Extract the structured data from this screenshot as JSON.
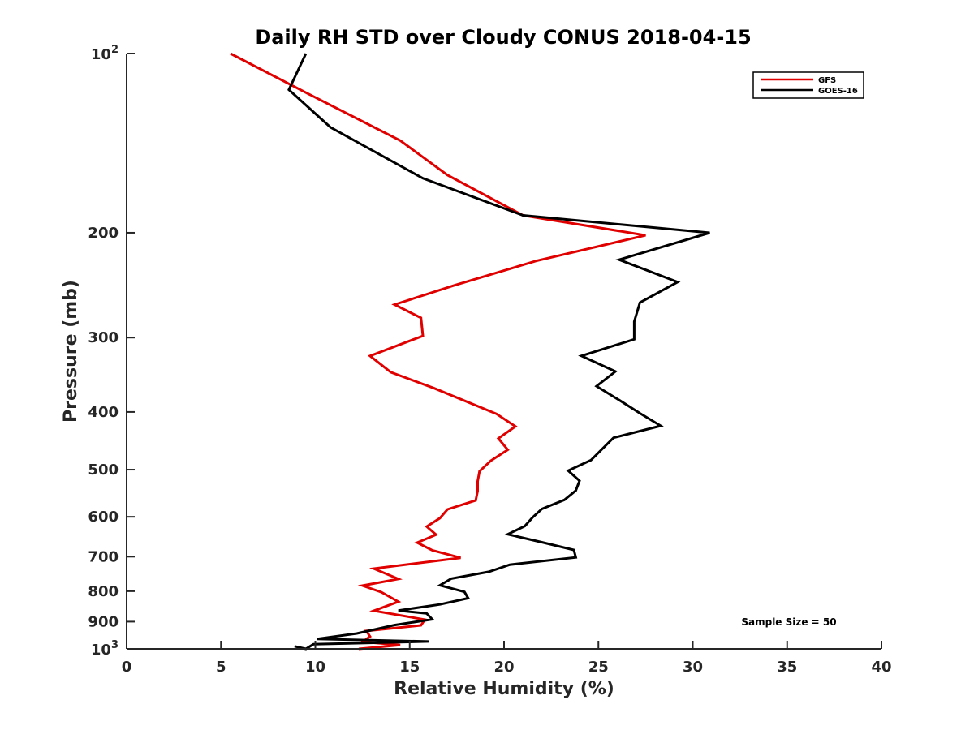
{
  "chart_data": {
    "type": "line",
    "title": "Daily RH STD over Cloudy CONUS 2018-04-15",
    "xlabel": "Relative Humidity (%)",
    "ylabel": "Pressure (mb)",
    "xlim": [
      0,
      40
    ],
    "ylim": [
      100,
      1000
    ],
    "y_scale": "log",
    "y_reversed": true,
    "grid": false,
    "legend_position": "top-right",
    "x_ticks": [
      0,
      5,
      10,
      15,
      20,
      25,
      30,
      35,
      40
    ],
    "x_tick_labels": [
      "0",
      "5",
      "10",
      "15",
      "20",
      "25",
      "30",
      "35",
      "40"
    ],
    "y_ticks": [
      200,
      300,
      400,
      500,
      600,
      700,
      800,
      900
    ],
    "y_tick_labels": [
      "200",
      "300",
      "400",
      "500",
      "600",
      "700",
      "800",
      "900"
    ],
    "y_major_ticks": [
      {
        "value": 100,
        "base": "10",
        "exp": "2"
      },
      {
        "value": 1000,
        "base": "10",
        "exp": "3"
      }
    ],
    "annotation": "Sample Size = 50",
    "series": [
      {
        "name": "GFS",
        "color": "#e00000",
        "points": [
          [
            5.5,
            100
          ],
          [
            9.2,
            115
          ],
          [
            14.5,
            140
          ],
          [
            17.0,
            160
          ],
          [
            21.0,
            187
          ],
          [
            27.5,
            202
          ],
          [
            21.7,
            223
          ],
          [
            17.4,
            245
          ],
          [
            14.2,
            264
          ],
          [
            15.6,
            278
          ],
          [
            15.7,
            298
          ],
          [
            12.9,
            322
          ],
          [
            14.0,
            343
          ],
          [
            16.3,
            365
          ],
          [
            19.6,
            403
          ],
          [
            20.6,
            423
          ],
          [
            19.7,
            443
          ],
          [
            20.2,
            463
          ],
          [
            19.3,
            483
          ],
          [
            18.7,
            503
          ],
          [
            18.6,
            523
          ],
          [
            18.6,
            543
          ],
          [
            18.5,
            563
          ],
          [
            17.0,
            583
          ],
          [
            16.6,
            603
          ],
          [
            15.9,
            623
          ],
          [
            16.4,
            643
          ],
          [
            15.4,
            663
          ],
          [
            16.2,
            683
          ],
          [
            17.7,
            703
          ],
          [
            13.1,
            733
          ],
          [
            14.4,
            763
          ],
          [
            12.5,
            783
          ],
          [
            13.5,
            803
          ],
          [
            14.4,
            833
          ],
          [
            13.1,
            863
          ],
          [
            15.8,
            893
          ],
          [
            15.6,
            913
          ],
          [
            12.7,
            933
          ],
          [
            12.9,
            953
          ],
          [
            12.5,
            973
          ],
          [
            14.5,
            985
          ],
          [
            12.3,
            1000
          ]
        ]
      },
      {
        "name": "GOES-16",
        "color": "#000000",
        "points": [
          [
            9.5,
            100
          ],
          [
            8.6,
            115
          ],
          [
            10.8,
            133
          ],
          [
            15.7,
            162
          ],
          [
            21.0,
            187
          ],
          [
            30.9,
            200
          ],
          [
            26.1,
            222
          ],
          [
            29.2,
            242
          ],
          [
            27.2,
            262
          ],
          [
            26.9,
            282
          ],
          [
            26.9,
            302
          ],
          [
            24.1,
            322
          ],
          [
            25.9,
            342
          ],
          [
            24.9,
            362
          ],
          [
            26.1,
            382
          ],
          [
            27.2,
            402
          ],
          [
            28.3,
            422
          ],
          [
            25.8,
            442
          ],
          [
            24.6,
            482
          ],
          [
            23.4,
            502
          ],
          [
            24.0,
            522
          ],
          [
            23.8,
            542
          ],
          [
            23.2,
            562
          ],
          [
            22.0,
            582
          ],
          [
            21.5,
            602
          ],
          [
            21.1,
            622
          ],
          [
            20.2,
            642
          ],
          [
            22.0,
            662
          ],
          [
            23.7,
            682
          ],
          [
            23.8,
            702
          ],
          [
            20.3,
            722
          ],
          [
            19.2,
            742
          ],
          [
            17.2,
            762
          ],
          [
            16.6,
            782
          ],
          [
            17.9,
            802
          ],
          [
            18.1,
            822
          ],
          [
            16.6,
            842
          ],
          [
            14.4,
            862
          ],
          [
            15.9,
            872
          ],
          [
            16.2,
            892
          ],
          [
            14.2,
            912
          ],
          [
            12.2,
            942
          ],
          [
            10.1,
            962
          ],
          [
            16.0,
            972
          ],
          [
            9.9,
            982
          ],
          [
            9.5,
            1000
          ],
          [
            8.9,
            990
          ]
        ]
      }
    ]
  }
}
